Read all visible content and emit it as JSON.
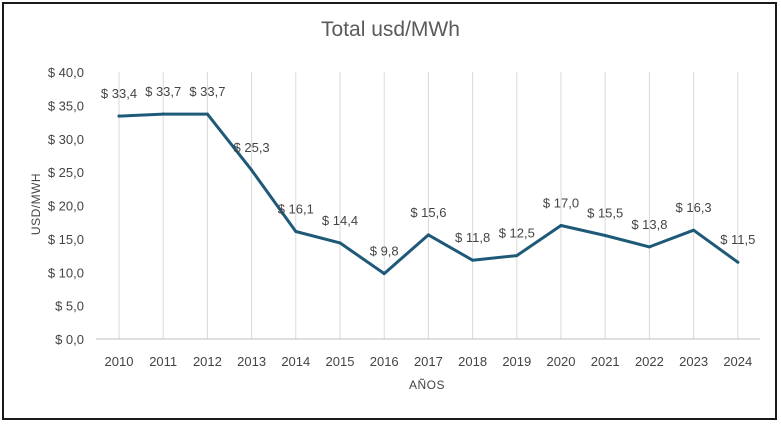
{
  "chart_data": {
    "type": "line",
    "title": "Total usd/MWh",
    "xlabel": "AÑOS",
    "ylabel": "USD/MWH",
    "categories": [
      "2010",
      "2011",
      "2012",
      "2013",
      "2014",
      "2015",
      "2016",
      "2017",
      "2018",
      "2019",
      "2020",
      "2021",
      "2022",
      "2023",
      "2024"
    ],
    "series": [
      {
        "values": [
          33.4,
          33.7,
          33.7,
          25.3,
          16.1,
          14.4,
          9.8,
          15.6,
          11.8,
          12.5,
          17.0,
          15.5,
          13.8,
          16.3,
          11.5
        ]
      }
    ],
    "data_labels": [
      "$ 33,4",
      "$ 33,7",
      "$ 33,7",
      "$ 25,3",
      "$ 16,1",
      "$ 14,4",
      "$ 9,8",
      "$ 15,6",
      "$ 11,8",
      "$ 12,5",
      "$ 17,0",
      "$ 15,5",
      "$ 13,8",
      "$ 16,3",
      "$ 11,5"
    ],
    "y_ticks": [
      0,
      5,
      10,
      15,
      20,
      25,
      30,
      35,
      40
    ],
    "y_tick_labels": [
      "$ 0,0",
      "$ 5,0",
      "$ 10,0",
      "$ 15,0",
      "$ 20,0",
      "$ 25,0",
      "$ 30,0",
      "$ 35,0",
      "$ 40,0"
    ],
    "ylim": [
      0,
      40
    ],
    "grid": "vertical",
    "legend": "none",
    "colors": {
      "line": "#1e5a78",
      "grid": "#d9d9d9",
      "baseline": "#bfbfbf"
    }
  }
}
